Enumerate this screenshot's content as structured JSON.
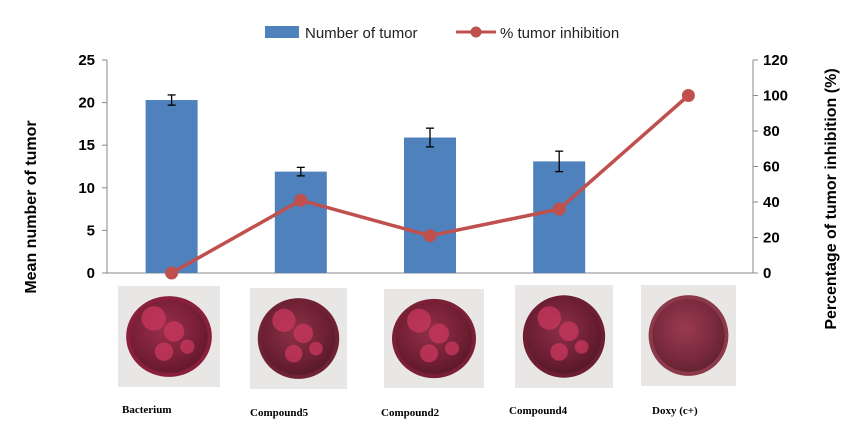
{
  "chart_data": {
    "type": "bar",
    "categories": [
      "Bacterium",
      "Compound 5",
      "Compound 2",
      "Compound 4",
      "Doxy (c+)"
    ],
    "series": [
      {
        "name": "Number of tumor",
        "type": "bar",
        "axis": "left",
        "color": "#4f81bd",
        "values": [
          20.3,
          11.9,
          15.9,
          13.1,
          null
        ],
        "errors": [
          0.6,
          0.5,
          1.1,
          1.2,
          null
        ]
      },
      {
        "name": "% tumor inhibition",
        "type": "line",
        "axis": "right",
        "color": "#c0504d",
        "values": [
          0,
          41,
          21,
          36,
          100
        ]
      }
    ],
    "ylabel": "Mean number of tumor",
    "y2label": "Percentage of tumor inhibition (%)",
    "ylim": [
      0,
      25
    ],
    "y2lim": [
      0,
      120
    ],
    "yticks": [
      "0",
      "5",
      "10",
      "15",
      "20",
      "25"
    ],
    "y2ticks": [
      "0",
      "20",
      "40",
      "60",
      "80",
      "100",
      "120"
    ],
    "legend_position": "top-center",
    "grid": false,
    "category_labels": [
      "Bacterium",
      "Compound5",
      "Compound2",
      "Compound4",
      "Doxy (c+)"
    ]
  },
  "photos": [
    {
      "name": "bacterium-photo",
      "icon": "tumor-disc-photo",
      "color": "#8a1f3c"
    },
    {
      "name": "compound-5-photo",
      "icon": "tumor-disc-photo",
      "color": "#6f2234"
    },
    {
      "name": "compound-2-photo",
      "icon": "tumor-disc-photo",
      "color": "#7a1f35"
    },
    {
      "name": "compound-4-photo",
      "icon": "tumor-disc-photo",
      "color": "#6d1e33"
    },
    {
      "name": "doxy-photo",
      "icon": "tumor-disc-photo",
      "color": "#8c3a4a"
    }
  ]
}
